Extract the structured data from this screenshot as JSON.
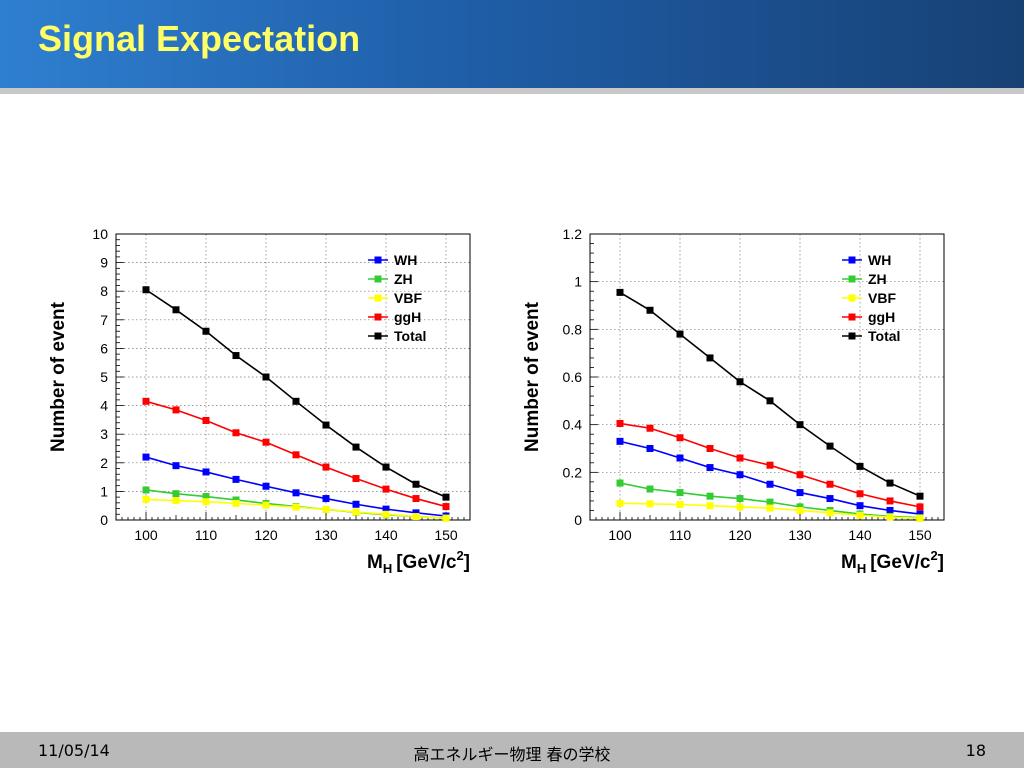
{
  "slide": {
    "title": "Signal Expectation",
    "footer": {
      "date": "11/05/14",
      "center": "高エネルギー物理 春の学校",
      "page": "18"
    },
    "colors": {
      "title_text": "#ffff66",
      "footer_bg": "#b9b9b9"
    }
  },
  "chart_data": [
    {
      "type": "line",
      "ylabel": "Number of event",
      "xlabel_main": "M",
      "xlabel_sub": "H",
      "xlabel_unit": "[GeV/c",
      "xlabel_sup": "2",
      "xlabel_close": "]",
      "xlim": [
        95,
        154
      ],
      "ylim": [
        0,
        10
      ],
      "xticks": [
        100,
        110,
        120,
        130,
        140,
        150
      ],
      "yticks": [
        0,
        1,
        2,
        3,
        4,
        5,
        6,
        7,
        8,
        9,
        10
      ],
      "ytick_labels": [
        "0",
        "1",
        "2",
        "3",
        "4",
        "5",
        "6",
        "7",
        "8",
        "9",
        "10"
      ],
      "grid": true,
      "legend": "top-right",
      "x": [
        100,
        105,
        110,
        115,
        120,
        125,
        130,
        135,
        140,
        145,
        150
      ],
      "series": [
        {
          "name": "WH",
          "color": "#0000ff",
          "values": [
            2.2,
            1.9,
            1.68,
            1.42,
            1.18,
            0.95,
            0.75,
            0.55,
            0.38,
            0.25,
            0.14
          ]
        },
        {
          "name": "ZH",
          "color": "#33cc33",
          "values": [
            1.05,
            0.92,
            0.82,
            0.7,
            0.58,
            0.47,
            0.37,
            0.27,
            0.18,
            0.12,
            0.07
          ]
        },
        {
          "name": "VBF",
          "color": "#ffff00",
          "values": [
            0.72,
            0.68,
            0.64,
            0.58,
            0.52,
            0.45,
            0.37,
            0.28,
            0.2,
            0.12,
            0.06
          ]
        },
        {
          "name": "ggH",
          "color": "#ff0000",
          "values": [
            4.15,
            3.85,
            3.48,
            3.05,
            2.72,
            2.28,
            1.85,
            1.45,
            1.08,
            0.75,
            0.47
          ]
        },
        {
          "name": "Total",
          "color": "#000000",
          "values": [
            8.05,
            7.35,
            6.6,
            5.75,
            5.0,
            4.15,
            3.32,
            2.55,
            1.85,
            1.25,
            0.8
          ]
        }
      ]
    },
    {
      "type": "line",
      "ylabel": "Number of event",
      "xlabel_main": "M",
      "xlabel_sub": "H",
      "xlabel_unit": "[GeV/c",
      "xlabel_sup": "2",
      "xlabel_close": "]",
      "xlim": [
        95,
        154
      ],
      "ylim": [
        0,
        1.2
      ],
      "xticks": [
        100,
        110,
        120,
        130,
        140,
        150
      ],
      "yticks": [
        0,
        0.2,
        0.4,
        0.6,
        0.8,
        1,
        1.2
      ],
      "ytick_labels": [
        "0",
        "0.2",
        "0.4",
        "0.6",
        "0.8",
        "1",
        "1.2"
      ],
      "grid": true,
      "legend": "top-right",
      "x": [
        100,
        105,
        110,
        115,
        120,
        125,
        130,
        135,
        140,
        145,
        150
      ],
      "series": [
        {
          "name": "WH",
          "color": "#0000ff",
          "values": [
            0.33,
            0.3,
            0.26,
            0.22,
            0.19,
            0.15,
            0.115,
            0.09,
            0.06,
            0.04,
            0.025
          ]
        },
        {
          "name": "ZH",
          "color": "#33cc33",
          "values": [
            0.155,
            0.13,
            0.115,
            0.1,
            0.09,
            0.075,
            0.055,
            0.04,
            0.025,
            0.015,
            0.01
          ]
        },
        {
          "name": "VBF",
          "color": "#ffff00",
          "values": [
            0.07,
            0.068,
            0.065,
            0.06,
            0.055,
            0.05,
            0.04,
            0.03,
            0.02,
            0.012,
            0.007
          ]
        },
        {
          "name": "ggH",
          "color": "#ff0000",
          "values": [
            0.405,
            0.385,
            0.345,
            0.3,
            0.26,
            0.23,
            0.19,
            0.15,
            0.11,
            0.08,
            0.055
          ]
        },
        {
          "name": "Total",
          "color": "#000000",
          "values": [
            0.955,
            0.88,
            0.78,
            0.68,
            0.58,
            0.5,
            0.4,
            0.31,
            0.225,
            0.155,
            0.1
          ]
        }
      ]
    }
  ]
}
